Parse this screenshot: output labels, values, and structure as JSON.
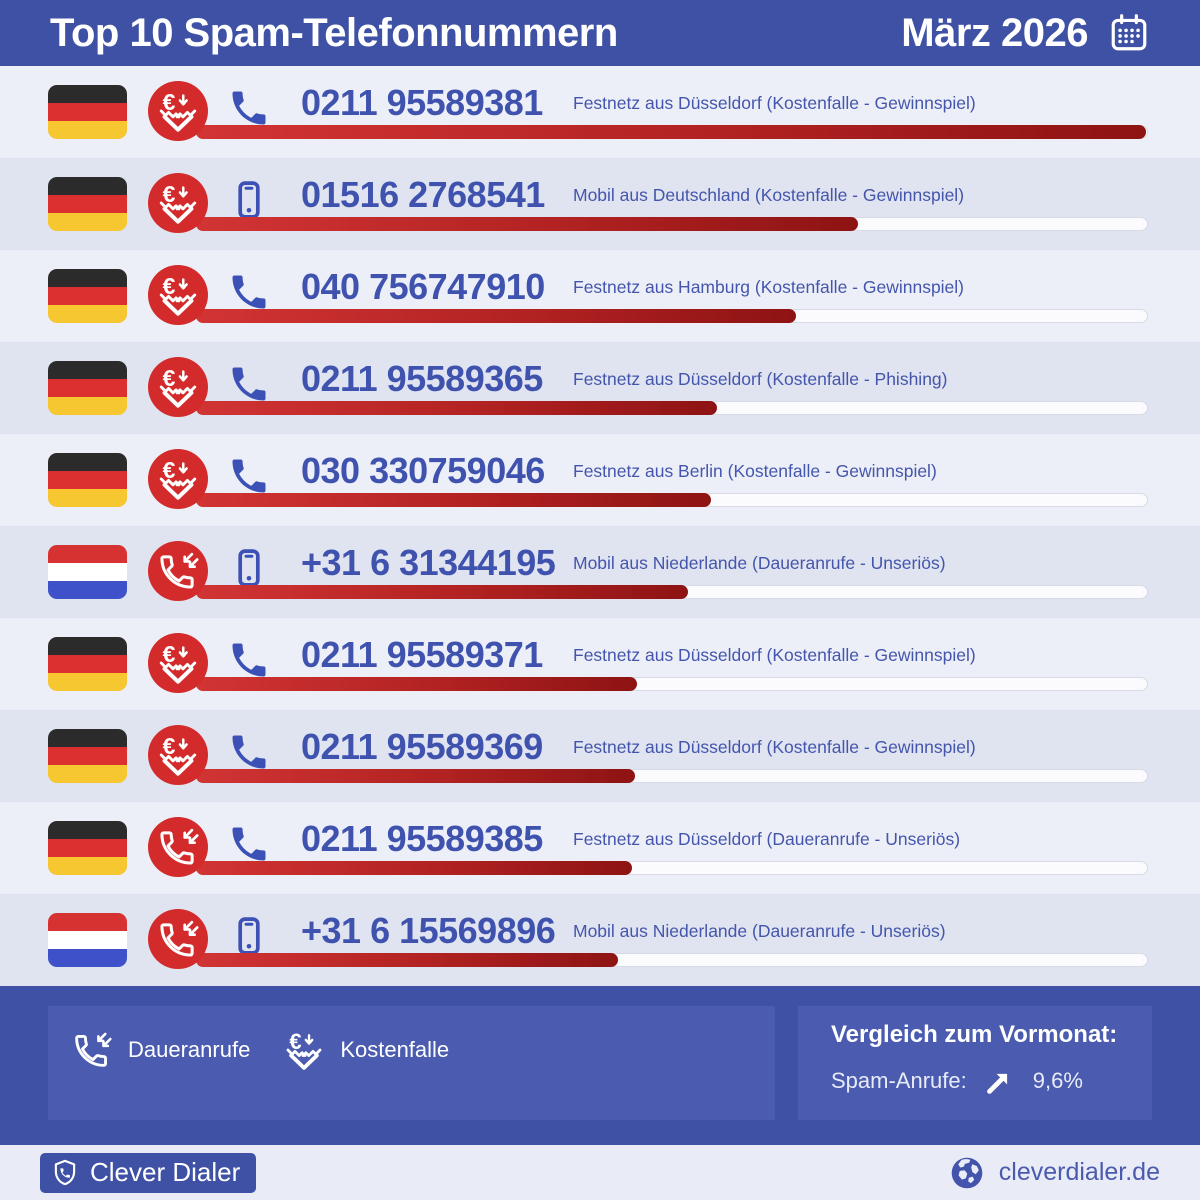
{
  "header": {
    "title": "Top 10 Spam-Telefonnummern",
    "period": "März 2026",
    "icon": "calendar-icon"
  },
  "rows": [
    {
      "rank": 1,
      "flag": "de",
      "spam_type": "kostenfalle",
      "phone_type": "landline",
      "number": "0211 95589381",
      "description": "Festnetz aus Düsseldorf (Kostenfalle - Gewinnspiel)",
      "bar_percent": 100
    },
    {
      "rank": 2,
      "flag": "de",
      "spam_type": "kostenfalle",
      "phone_type": "mobile",
      "number": "01516 2768541",
      "description": "Mobil aus Deutschland (Kostenfalle - Gewinnspiel)",
      "bar_percent": 69.7
    },
    {
      "rank": 3,
      "flag": "de",
      "spam_type": "kostenfalle",
      "phone_type": "landline",
      "number": "040 756747910",
      "description": "Festnetz aus Hamburg (Kostenfalle - Gewinnspiel)",
      "bar_percent": 63.2
    },
    {
      "rank": 4,
      "flag": "de",
      "spam_type": "kostenfalle",
      "phone_type": "landline",
      "number": "0211 95589365",
      "description": "Festnetz aus Düsseldorf (Kostenfalle - Phishing)",
      "bar_percent": 54.8
    },
    {
      "rank": 5,
      "flag": "de",
      "spam_type": "kostenfalle",
      "phone_type": "landline",
      "number": "030 330759046",
      "description": "Festnetz aus Berlin (Kostenfalle - Gewinnspiel)",
      "bar_percent": 54.2
    },
    {
      "rank": 6,
      "flag": "nl",
      "spam_type": "daueranrufe",
      "phone_type": "mobile",
      "number": "+31 6 31344195",
      "description": "Mobil aus Niederlande (Daueranrufe - Unseriös)",
      "bar_percent": 51.8
    },
    {
      "rank": 7,
      "flag": "de",
      "spam_type": "kostenfalle",
      "phone_type": "landline",
      "number": "0211 95589371",
      "description": "Festnetz aus Düsseldorf (Kostenfalle - Gewinnspiel)",
      "bar_percent": 46.4
    },
    {
      "rank": 8,
      "flag": "de",
      "spam_type": "kostenfalle",
      "phone_type": "landline",
      "number": "0211 95589369",
      "description": "Festnetz aus Düsseldorf (Kostenfalle - Gewinnspiel)",
      "bar_percent": 46.2
    },
    {
      "rank": 9,
      "flag": "de",
      "spam_type": "daueranrufe",
      "phone_type": "landline",
      "number": "0211 95589385",
      "description": "Festnetz aus Düsseldorf (Daueranrufe - Unseriös)",
      "bar_percent": 45.9
    },
    {
      "rank": 10,
      "flag": "nl",
      "spam_type": "daueranrufe",
      "phone_type": "mobile",
      "number": "+31 6 15569896",
      "description": "Mobil aus Niederlande (Daueranrufe - Unseriös)",
      "bar_percent": 44.4
    }
  ],
  "legend": {
    "items": [
      {
        "icon": "daueranrufe-icon",
        "label": "Daueranrufe"
      },
      {
        "icon": "kostenfalle-icon",
        "label": "Kostenfalle"
      }
    ]
  },
  "comparison": {
    "title": "Vergleich zum Vormonat:",
    "metric_label": "Spam-Anrufe:",
    "value": "9,6%",
    "trend": "up",
    "trend_icon": "arrow-up-right-icon"
  },
  "footer": {
    "brand": "Clever Dialer",
    "brand_icon": "shield-phone-icon",
    "website": "cleverdialer.de",
    "website_icon": "globe-icon"
  },
  "colors": {
    "header_bg": "#3F51A5",
    "panel_bg": "#4A5BB0",
    "accent_red": "#D32B2B",
    "bar_gradient_start": "#D23434",
    "bar_gradient_end": "#8E1313",
    "row_light": "#EDEFF8",
    "row_dark": "#E0E3F0",
    "number_blue": "#3E52AE",
    "bottom_bar_bg": "#E9EBF6"
  },
  "chart_data": {
    "type": "bar",
    "orientation": "horizontal",
    "title": "Top 10 Spam-Telefonnummern",
    "subtitle": "März 2026",
    "categories": [
      "0211 95589381",
      "01516 2768541",
      "040 756747910",
      "0211 95589365",
      "030 330759046",
      "+31 6 31344195",
      "0211 95589371",
      "0211 95589369",
      "0211 95589385",
      "+31 6 15569896"
    ],
    "values": [
      100,
      69.7,
      63.2,
      54.8,
      54.2,
      51.8,
      46.4,
      46.2,
      45.9,
      44.4
    ],
    "value_unit": "relative Balkenlänge in % der Nr. 1 (keine Achse sichtbar)",
    "annotations": [
      "Festnetz aus Düsseldorf (Kostenfalle - Gewinnspiel)",
      "Mobil aus Deutschland (Kostenfalle - Gewinnspiel)",
      "Festnetz aus Hamburg (Kostenfalle - Gewinnspiel)",
      "Festnetz aus Düsseldorf (Kostenfalle - Phishing)",
      "Festnetz aus Berlin (Kostenfalle - Gewinnspiel)",
      "Mobil aus Niederlande (Daueranrufe - Unseriös)",
      "Festnetz aus Düsseldorf (Kostenfalle - Gewinnspiel)",
      "Festnetz aus Düsseldorf (Kostenfalle - Gewinnspiel)",
      "Festnetz aus Düsseldorf (Daueranrufe - Unseriös)",
      "Mobil aus Niederlande (Daueranrufe - Unseriös)"
    ],
    "legend_entries": [
      "Daueranrufe",
      "Kostenfalle"
    ],
    "grid": false,
    "legend_position": "bottom-left"
  }
}
